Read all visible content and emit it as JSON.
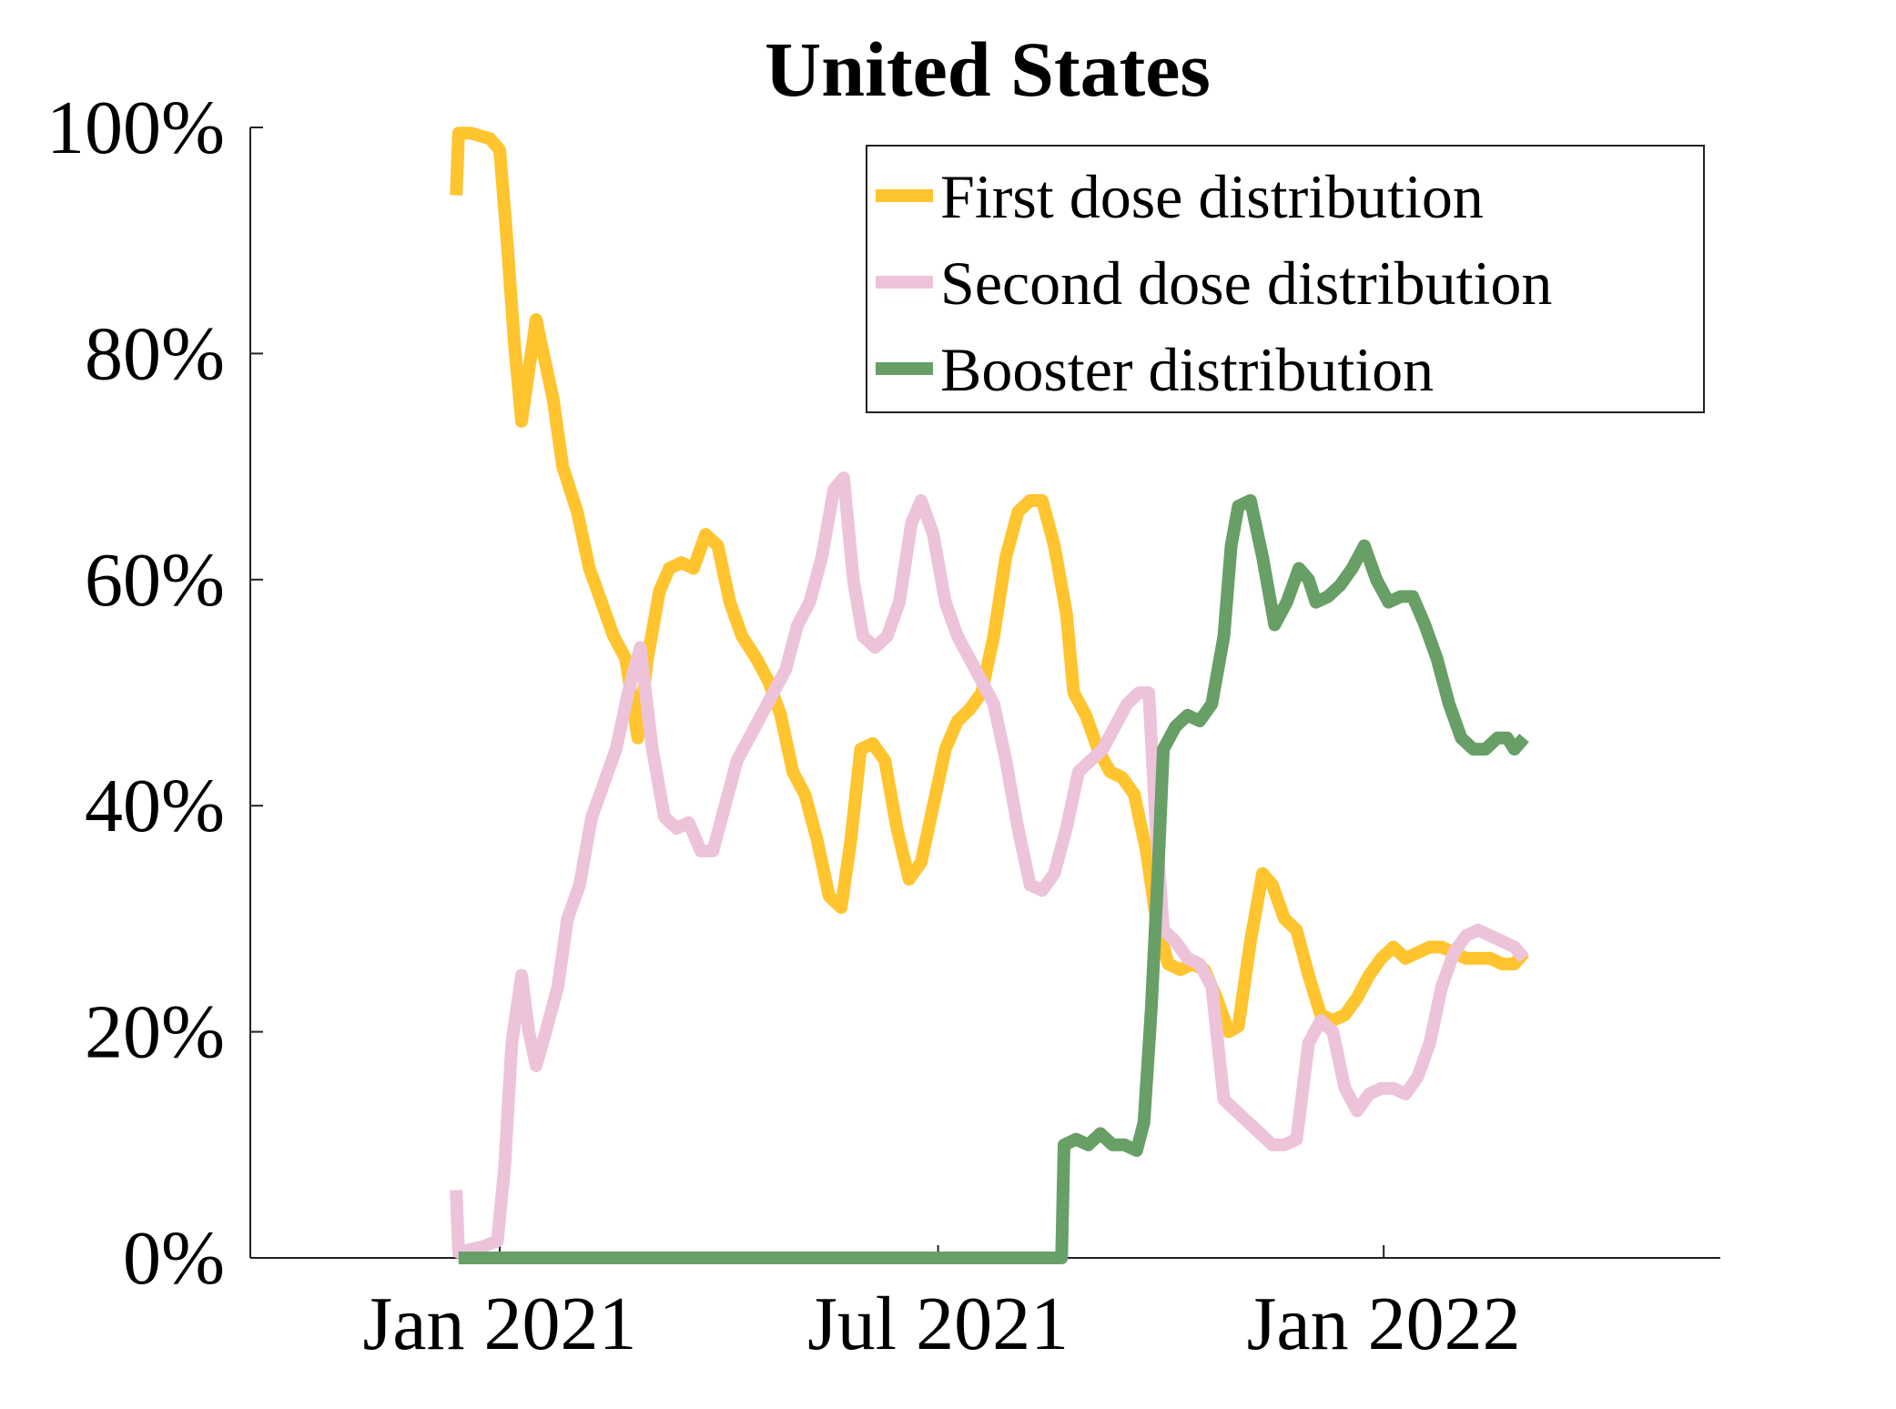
{
  "chart_data": {
    "type": "line",
    "title": "United States",
    "xlabel": "",
    "ylabel": "",
    "ylim": [
      0,
      100
    ],
    "yticks": [
      0,
      20,
      40,
      60,
      80,
      100
    ],
    "ytick_labels": [
      "0%",
      "20%",
      "40%",
      "60%",
      "80%",
      "100%"
    ],
    "xlim": [
      "2020-09-20",
      "2022-05-20"
    ],
    "xticks": [
      "2021-01-01",
      "2021-07-01",
      "2022-01-01"
    ],
    "xtick_labels": [
      "Jan 2021",
      "Jul 2021",
      "Jan 2022"
    ],
    "legend_position": "top-right",
    "grid": false,
    "series": [
      {
        "name": "First dose distribution",
        "color": "#FFC42E",
        "points": [
          [
            "2020-12-14",
            94
          ],
          [
            "2020-12-15",
            99.5
          ],
          [
            "2020-12-20",
            99.5
          ],
          [
            "2020-12-28",
            99
          ],
          [
            "2021-01-01",
            98
          ],
          [
            "2021-01-04",
            90
          ],
          [
            "2021-01-07",
            81
          ],
          [
            "2021-01-10",
            74
          ],
          [
            "2021-01-14",
            80
          ],
          [
            "2021-01-16",
            83
          ],
          [
            "2021-01-19",
            80
          ],
          [
            "2021-01-23",
            76
          ],
          [
            "2021-01-27",
            70
          ],
          [
            "2021-02-02",
            66
          ],
          [
            "2021-02-07",
            61
          ],
          [
            "2021-02-12",
            58
          ],
          [
            "2021-02-17",
            55
          ],
          [
            "2021-02-22",
            53
          ],
          [
            "2021-02-27",
            46
          ],
          [
            "2021-03-03",
            53
          ],
          [
            "2021-03-08",
            59
          ],
          [
            "2021-03-12",
            61
          ],
          [
            "2021-03-17",
            61.5
          ],
          [
            "2021-03-22",
            61
          ],
          [
            "2021-03-27",
            64
          ],
          [
            "2021-04-01",
            63
          ],
          [
            "2021-04-06",
            58
          ],
          [
            "2021-04-11",
            55
          ],
          [
            "2021-04-17",
            53
          ],
          [
            "2021-04-22",
            51
          ],
          [
            "2021-04-27",
            48
          ],
          [
            "2021-05-02",
            43
          ],
          [
            "2021-05-07",
            41
          ],
          [
            "2021-05-12",
            37
          ],
          [
            "2021-05-17",
            32
          ],
          [
            "2021-05-22",
            31
          ],
          [
            "2021-05-26",
            37
          ],
          [
            "2021-05-30",
            45
          ],
          [
            "2021-06-04",
            45.5
          ],
          [
            "2021-06-09",
            44
          ],
          [
            "2021-06-14",
            38
          ],
          [
            "2021-06-19",
            33.5
          ],
          [
            "2021-06-24",
            35
          ],
          [
            "2021-06-29",
            40
          ],
          [
            "2021-07-04",
            45
          ],
          [
            "2021-07-09",
            47.5
          ],
          [
            "2021-07-14",
            48.5
          ],
          [
            "2021-07-19",
            50
          ],
          [
            "2021-07-24",
            55
          ],
          [
            "2021-07-29",
            62
          ],
          [
            "2021-08-03",
            66
          ],
          [
            "2021-08-08",
            67
          ],
          [
            "2021-08-13",
            67
          ],
          [
            "2021-08-18",
            63
          ],
          [
            "2021-08-23",
            57
          ],
          [
            "2021-08-26",
            50
          ],
          [
            "2021-08-31",
            48
          ],
          [
            "2021-09-05",
            45
          ],
          [
            "2021-09-10",
            43
          ],
          [
            "2021-09-15",
            42.5
          ],
          [
            "2021-09-20",
            41
          ],
          [
            "2021-09-25",
            36
          ],
          [
            "2021-09-29",
            30
          ],
          [
            "2021-10-04",
            26
          ],
          [
            "2021-10-09",
            25.5
          ],
          [
            "2021-10-14",
            26
          ],
          [
            "2021-10-19",
            25.5
          ],
          [
            "2021-10-24",
            23
          ],
          [
            "2021-10-29",
            20
          ],
          [
            "2021-11-02",
            20.5
          ],
          [
            "2021-11-07",
            28
          ],
          [
            "2021-11-12",
            34
          ],
          [
            "2021-11-16",
            33
          ],
          [
            "2021-11-21",
            30
          ],
          [
            "2021-11-26",
            29
          ],
          [
            "2021-12-01",
            25
          ],
          [
            "2021-12-06",
            21.5
          ],
          [
            "2021-12-11",
            21
          ],
          [
            "2021-12-16",
            21.5
          ],
          [
            "2021-12-21",
            23
          ],
          [
            "2021-12-26",
            25
          ],
          [
            "2021-12-31",
            26.5
          ],
          [
            "2022-01-05",
            27.5
          ],
          [
            "2022-01-10",
            26.5
          ],
          [
            "2022-01-15",
            27
          ],
          [
            "2022-01-20",
            27.5
          ],
          [
            "2022-01-25",
            27.5
          ],
          [
            "2022-01-30",
            27
          ],
          [
            "2022-02-04",
            26.5
          ],
          [
            "2022-02-09",
            26.5
          ],
          [
            "2022-02-14",
            26.5
          ],
          [
            "2022-02-19",
            26
          ],
          [
            "2022-02-24",
            26
          ],
          [
            "2022-02-28",
            27
          ]
        ]
      },
      {
        "name": "Second dose distribution",
        "color": "#EDC3DA",
        "points": [
          [
            "2020-12-14",
            6
          ],
          [
            "2020-12-15",
            0.5
          ],
          [
            "2020-12-25",
            1
          ],
          [
            "2020-12-31",
            1.5
          ],
          [
            "2021-01-03",
            8
          ],
          [
            "2021-01-06",
            19
          ],
          [
            "2021-01-10",
            25
          ],
          [
            "2021-01-13",
            20
          ],
          [
            "2021-01-16",
            17
          ],
          [
            "2021-01-20",
            20
          ],
          [
            "2021-01-25",
            24
          ],
          [
            "2021-01-29",
            30
          ],
          [
            "2021-02-03",
            33
          ],
          [
            "2021-02-08",
            39
          ],
          [
            "2021-02-13",
            42
          ],
          [
            "2021-02-18",
            45
          ],
          [
            "2021-02-23",
            50
          ],
          [
            "2021-02-28",
            54
          ],
          [
            "2021-03-05",
            45
          ],
          [
            "2021-03-10",
            39
          ],
          [
            "2021-03-15",
            38
          ],
          [
            "2021-03-20",
            38.5
          ],
          [
            "2021-03-25",
            36
          ],
          [
            "2021-03-30",
            36
          ],
          [
            "2021-04-04",
            40
          ],
          [
            "2021-04-09",
            44
          ],
          [
            "2021-04-14",
            46
          ],
          [
            "2021-04-19",
            48
          ],
          [
            "2021-04-24",
            50
          ],
          [
            "2021-04-29",
            52
          ],
          [
            "2021-05-04",
            56
          ],
          [
            "2021-05-09",
            58
          ],
          [
            "2021-05-14",
            62
          ],
          [
            "2021-05-19",
            68
          ],
          [
            "2021-05-23",
            69
          ],
          [
            "2021-05-27",
            60
          ],
          [
            "2021-05-31",
            55
          ],
          [
            "2021-06-05",
            54
          ],
          [
            "2021-06-10",
            55
          ],
          [
            "2021-06-15",
            58
          ],
          [
            "2021-06-20",
            65
          ],
          [
            "2021-06-24",
            67
          ],
          [
            "2021-06-29",
            64
          ],
          [
            "2021-07-04",
            58
          ],
          [
            "2021-07-09",
            55
          ],
          [
            "2021-07-14",
            53
          ],
          [
            "2021-07-19",
            51
          ],
          [
            "2021-07-24",
            49
          ],
          [
            "2021-07-29",
            44
          ],
          [
            "2021-08-03",
            38
          ],
          [
            "2021-08-08",
            33
          ],
          [
            "2021-08-13",
            32.5
          ],
          [
            "2021-08-18",
            34
          ],
          [
            "2021-08-23",
            38
          ],
          [
            "2021-08-28",
            43
          ],
          [
            "2021-09-02",
            44
          ],
          [
            "2021-09-07",
            45
          ],
          [
            "2021-09-12",
            47
          ],
          [
            "2021-09-17",
            49
          ],
          [
            "2021-09-22",
            50
          ],
          [
            "2021-09-26",
            50
          ],
          [
            "2021-09-29",
            38
          ],
          [
            "2021-10-02",
            29
          ],
          [
            "2021-10-07",
            28
          ],
          [
            "2021-10-12",
            26.5
          ],
          [
            "2021-10-17",
            26
          ],
          [
            "2021-10-22",
            24
          ],
          [
            "2021-10-27",
            14
          ],
          [
            "2021-11-01",
            13
          ],
          [
            "2021-11-06",
            12
          ],
          [
            "2021-11-11",
            11
          ],
          [
            "2021-11-16",
            10
          ],
          [
            "2021-11-21",
            10
          ],
          [
            "2021-11-26",
            10.5
          ],
          [
            "2021-12-01",
            19
          ],
          [
            "2021-12-06",
            21
          ],
          [
            "2021-12-11",
            20
          ],
          [
            "2021-12-16",
            15
          ],
          [
            "2021-12-21",
            13
          ],
          [
            "2021-12-26",
            14.5
          ],
          [
            "2021-12-31",
            15
          ],
          [
            "2022-01-05",
            15
          ],
          [
            "2022-01-10",
            14.5
          ],
          [
            "2022-01-15",
            16
          ],
          [
            "2022-01-20",
            19
          ],
          [
            "2022-01-25",
            24
          ],
          [
            "2022-01-30",
            27
          ],
          [
            "2022-02-04",
            28.5
          ],
          [
            "2022-02-09",
            29
          ],
          [
            "2022-02-14",
            28.5
          ],
          [
            "2022-02-19",
            28
          ],
          [
            "2022-02-24",
            27.5
          ],
          [
            "2022-02-28",
            26.5
          ]
        ]
      },
      {
        "name": "Booster distribution",
        "color": "#679F66",
        "points": [
          [
            "2020-12-15",
            0
          ],
          [
            "2021-08-21",
            0
          ],
          [
            "2021-08-22",
            10
          ],
          [
            "2021-08-27",
            10.5
          ],
          [
            "2021-09-01",
            10
          ],
          [
            "2021-09-06",
            11
          ],
          [
            "2021-09-11",
            10
          ],
          [
            "2021-09-16",
            10
          ],
          [
            "2021-09-21",
            9.5
          ],
          [
            "2021-09-24",
            12
          ],
          [
            "2021-09-27",
            22
          ],
          [
            "2021-09-30",
            35
          ],
          [
            "2021-10-02",
            45
          ],
          [
            "2021-10-07",
            47
          ],
          [
            "2021-10-12",
            48
          ],
          [
            "2021-10-17",
            47.5
          ],
          [
            "2021-10-22",
            49
          ],
          [
            "2021-10-27",
            55
          ],
          [
            "2021-10-30",
            63
          ],
          [
            "2021-11-02",
            66.5
          ],
          [
            "2021-11-07",
            67
          ],
          [
            "2021-11-12",
            62
          ],
          [
            "2021-11-17",
            56
          ],
          [
            "2021-11-22",
            58
          ],
          [
            "2021-11-27",
            61
          ],
          [
            "2021-12-01",
            60
          ],
          [
            "2021-12-04",
            58
          ],
          [
            "2021-12-09",
            58.5
          ],
          [
            "2021-12-14",
            59.5
          ],
          [
            "2021-12-19",
            61
          ],
          [
            "2021-12-24",
            63
          ],
          [
            "2021-12-29",
            60
          ],
          [
            "2022-01-03",
            58
          ],
          [
            "2022-01-08",
            58.5
          ],
          [
            "2022-01-13",
            58.5
          ],
          [
            "2022-01-18",
            56
          ],
          [
            "2022-01-23",
            53
          ],
          [
            "2022-01-28",
            49
          ],
          [
            "2022-02-02",
            46
          ],
          [
            "2022-02-07",
            45
          ],
          [
            "2022-02-12",
            45
          ],
          [
            "2022-02-17",
            46
          ],
          [
            "2022-02-21",
            46
          ],
          [
            "2022-02-24",
            45
          ],
          [
            "2022-02-28",
            46
          ]
        ]
      }
    ]
  }
}
